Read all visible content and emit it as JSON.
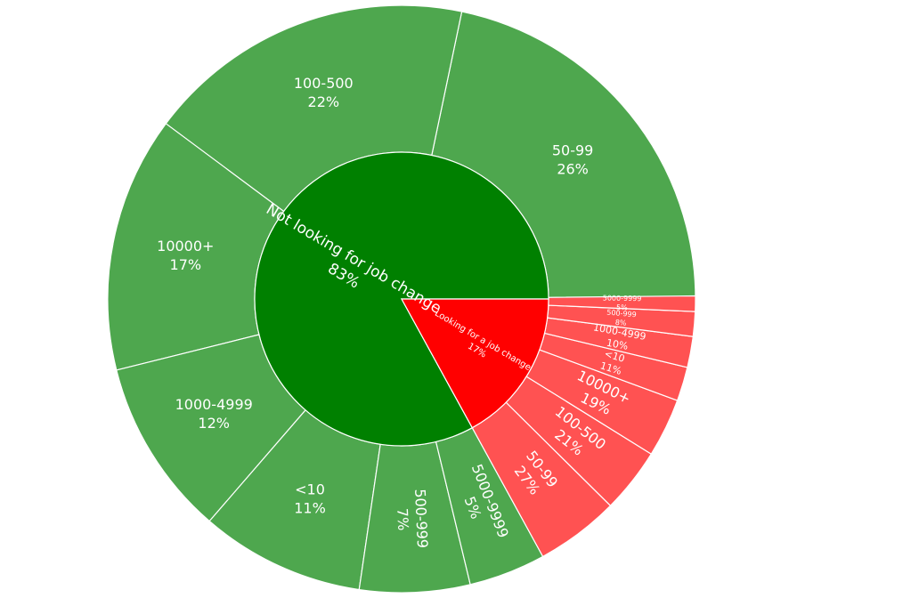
{
  "chart_data": {
    "type": "sunburst",
    "colors": {
      "Not looking for job change": {
        "inner": "#008000",
        "outer": "#4ea74e"
      },
      "Looking for a job change": {
        "inner": "#ff0000",
        "outer": "#ff5252"
      }
    },
    "groups": [
      {
        "name": "Not looking for job change",
        "percent_label": "83%",
        "share": 0.8298,
        "children": [
          {
            "name": "50-99",
            "percent_label": "26%",
            "share": 0.2617
          },
          {
            "name": "100-500",
            "percent_label": "22%",
            "share": 0.2181
          },
          {
            "name": "10000+",
            "percent_label": "17%",
            "share": 0.1697
          },
          {
            "name": "1000-4999",
            "percent_label": "12%",
            "share": 0.1176
          },
          {
            "name": "<10",
            "percent_label": "11%",
            "share": 0.1089
          },
          {
            "name": "500-999",
            "percent_label": "7%",
            "share": 0.0731
          },
          {
            "name": "5000-9999",
            "percent_label": "5%",
            "share": 0.0509
          }
        ]
      },
      {
        "name": "Looking for a job change",
        "percent_label": "17%",
        "share": 0.1702,
        "children": [
          {
            "name": "50-99",
            "percent_label": "27%",
            "share": 0.27
          },
          {
            "name": "100-500",
            "percent_label": "21%",
            "share": 0.21
          },
          {
            "name": "10000+",
            "percent_label": "19%",
            "share": 0.19
          },
          {
            "name": "<10",
            "percent_label": "11%",
            "share": 0.11
          },
          {
            "name": "1000-4999",
            "percent_label": "10%",
            "share": 0.1
          },
          {
            "name": "500-999",
            "percent_label": "8%",
            "share": 0.08
          },
          {
            "name": "5000-9999",
            "percent_label": "5%",
            "share": 0.05
          }
        ]
      }
    ]
  }
}
